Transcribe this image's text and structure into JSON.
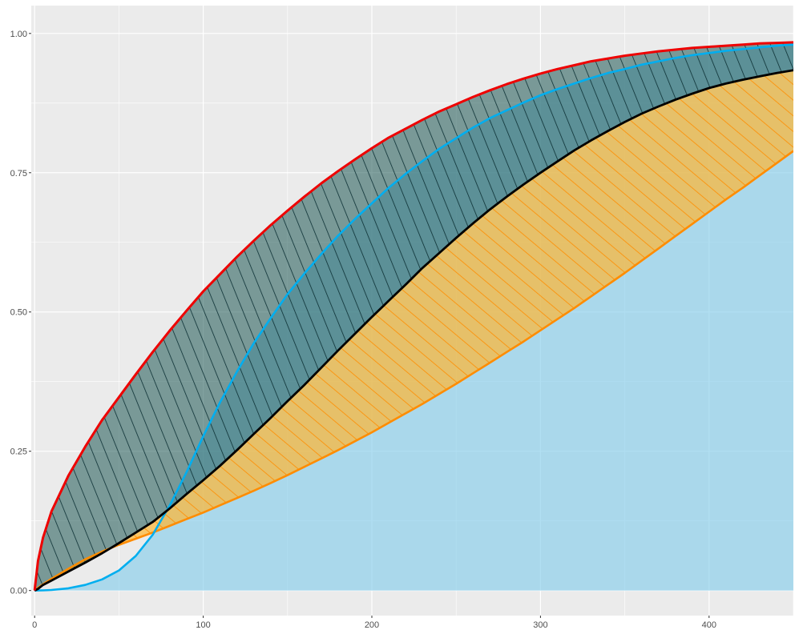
{
  "chart_data": {
    "type": "area",
    "title": "",
    "xlabel": "",
    "ylabel": "",
    "xlim": [
      -2,
      450
    ],
    "ylim": [
      -0.045,
      1.05
    ],
    "x_ticks": [
      {
        "value": 0,
        "label": "0"
      },
      {
        "value": 100,
        "label": "100"
      },
      {
        "value": 200,
        "label": "200"
      },
      {
        "value": 300,
        "label": "300"
      },
      {
        "value": 400,
        "label": "400"
      }
    ],
    "y_ticks": [
      {
        "value": 0,
        "label": "0.00"
      },
      {
        "value": 0.25,
        "label": "0.25"
      },
      {
        "value": 0.5,
        "label": "0.50"
      },
      {
        "value": 0.75,
        "label": "0.75"
      },
      {
        "value": 1.0,
        "label": "1.00"
      }
    ],
    "grid": true,
    "legend": "none",
    "colors": {
      "panel": "#EBEBEB",
      "grid": "#FFFFFF",
      "red": "#EE0000",
      "black": "#000000",
      "blue": "#00AEEF",
      "orange": "#FF8C00",
      "orange_fill": "#FFB732",
      "blue_fill": "#87CEEB",
      "dark_fill": "#1C5552"
    },
    "x": [
      0,
      2,
      5,
      10,
      20,
      30,
      40,
      50,
      60,
      70,
      80,
      90,
      100,
      110,
      120,
      130,
      140,
      150,
      160,
      170,
      180,
      190,
      200,
      210,
      220,
      230,
      240,
      250,
      260,
      270,
      280,
      290,
      300,
      310,
      320,
      330,
      340,
      350,
      360,
      370,
      380,
      390,
      400,
      410,
      420,
      430,
      440,
      450
    ],
    "series": [
      {
        "values": [
          0,
          0.053,
          0.095,
          0.142,
          0.206,
          0.258,
          0.306,
          0.347,
          0.388,
          0.428,
          0.466,
          0.502,
          0.537,
          0.568,
          0.599,
          0.628,
          0.656,
          0.682,
          0.707,
          0.731,
          0.753,
          0.774,
          0.794,
          0.813,
          0.829,
          0.845,
          0.86,
          0.873,
          0.886,
          0.898,
          0.909,
          0.919,
          0.928,
          0.936,
          0.943,
          0.95,
          0.955,
          0.96,
          0.964,
          0.968,
          0.971,
          0.974,
          0.976,
          0.978,
          0.98,
          0.982,
          0.983,
          0.984
        ]
      },
      {
        "values": [
          0,
          0.003,
          0.01,
          0.018,
          0.034,
          0.05,
          0.067,
          0.085,
          0.104,
          0.123,
          0.147,
          0.173,
          0.198,
          0.224,
          0.252,
          0.281,
          0.31,
          0.34,
          0.369,
          0.4,
          0.431,
          0.461,
          0.491,
          0.52,
          0.549,
          0.579,
          0.606,
          0.633,
          0.659,
          0.684,
          0.707,
          0.729,
          0.75,
          0.77,
          0.79,
          0.808,
          0.825,
          0.841,
          0.856,
          0.869,
          0.881,
          0.892,
          0.902,
          0.91,
          0.917,
          0.923,
          0.929,
          0.934
        ]
      },
      {
        "values": [
          0,
          0.0001,
          0.0003,
          0.001,
          0.004,
          0.01,
          0.02,
          0.036,
          0.062,
          0.1,
          0.152,
          0.212,
          0.277,
          0.338,
          0.393,
          0.444,
          0.489,
          0.532,
          0.569,
          0.604,
          0.637,
          0.667,
          0.695,
          0.723,
          0.748,
          0.771,
          0.793,
          0.812,
          0.831,
          0.848,
          0.862,
          0.876,
          0.889,
          0.9,
          0.91,
          0.92,
          0.929,
          0.936,
          0.944,
          0.95,
          0.956,
          0.961,
          0.965,
          0.969,
          0.972,
          0.975,
          0.978,
          0.98
        ]
      },
      {
        "values": [
          0,
          0.005,
          0.011,
          0.021,
          0.039,
          0.056,
          0.07,
          0.082,
          0.093,
          0.104,
          0.116,
          0.128,
          0.14,
          0.153,
          0.166,
          0.179,
          0.193,
          0.207,
          0.222,
          0.237,
          0.252,
          0.268,
          0.284,
          0.301,
          0.318,
          0.335,
          0.353,
          0.371,
          0.39,
          0.409,
          0.428,
          0.447,
          0.467,
          0.487,
          0.507,
          0.528,
          0.549,
          0.57,
          0.592,
          0.614,
          0.636,
          0.658,
          0.68,
          0.702,
          0.723,
          0.745,
          0.767,
          0.789
        ]
      }
    ]
  }
}
